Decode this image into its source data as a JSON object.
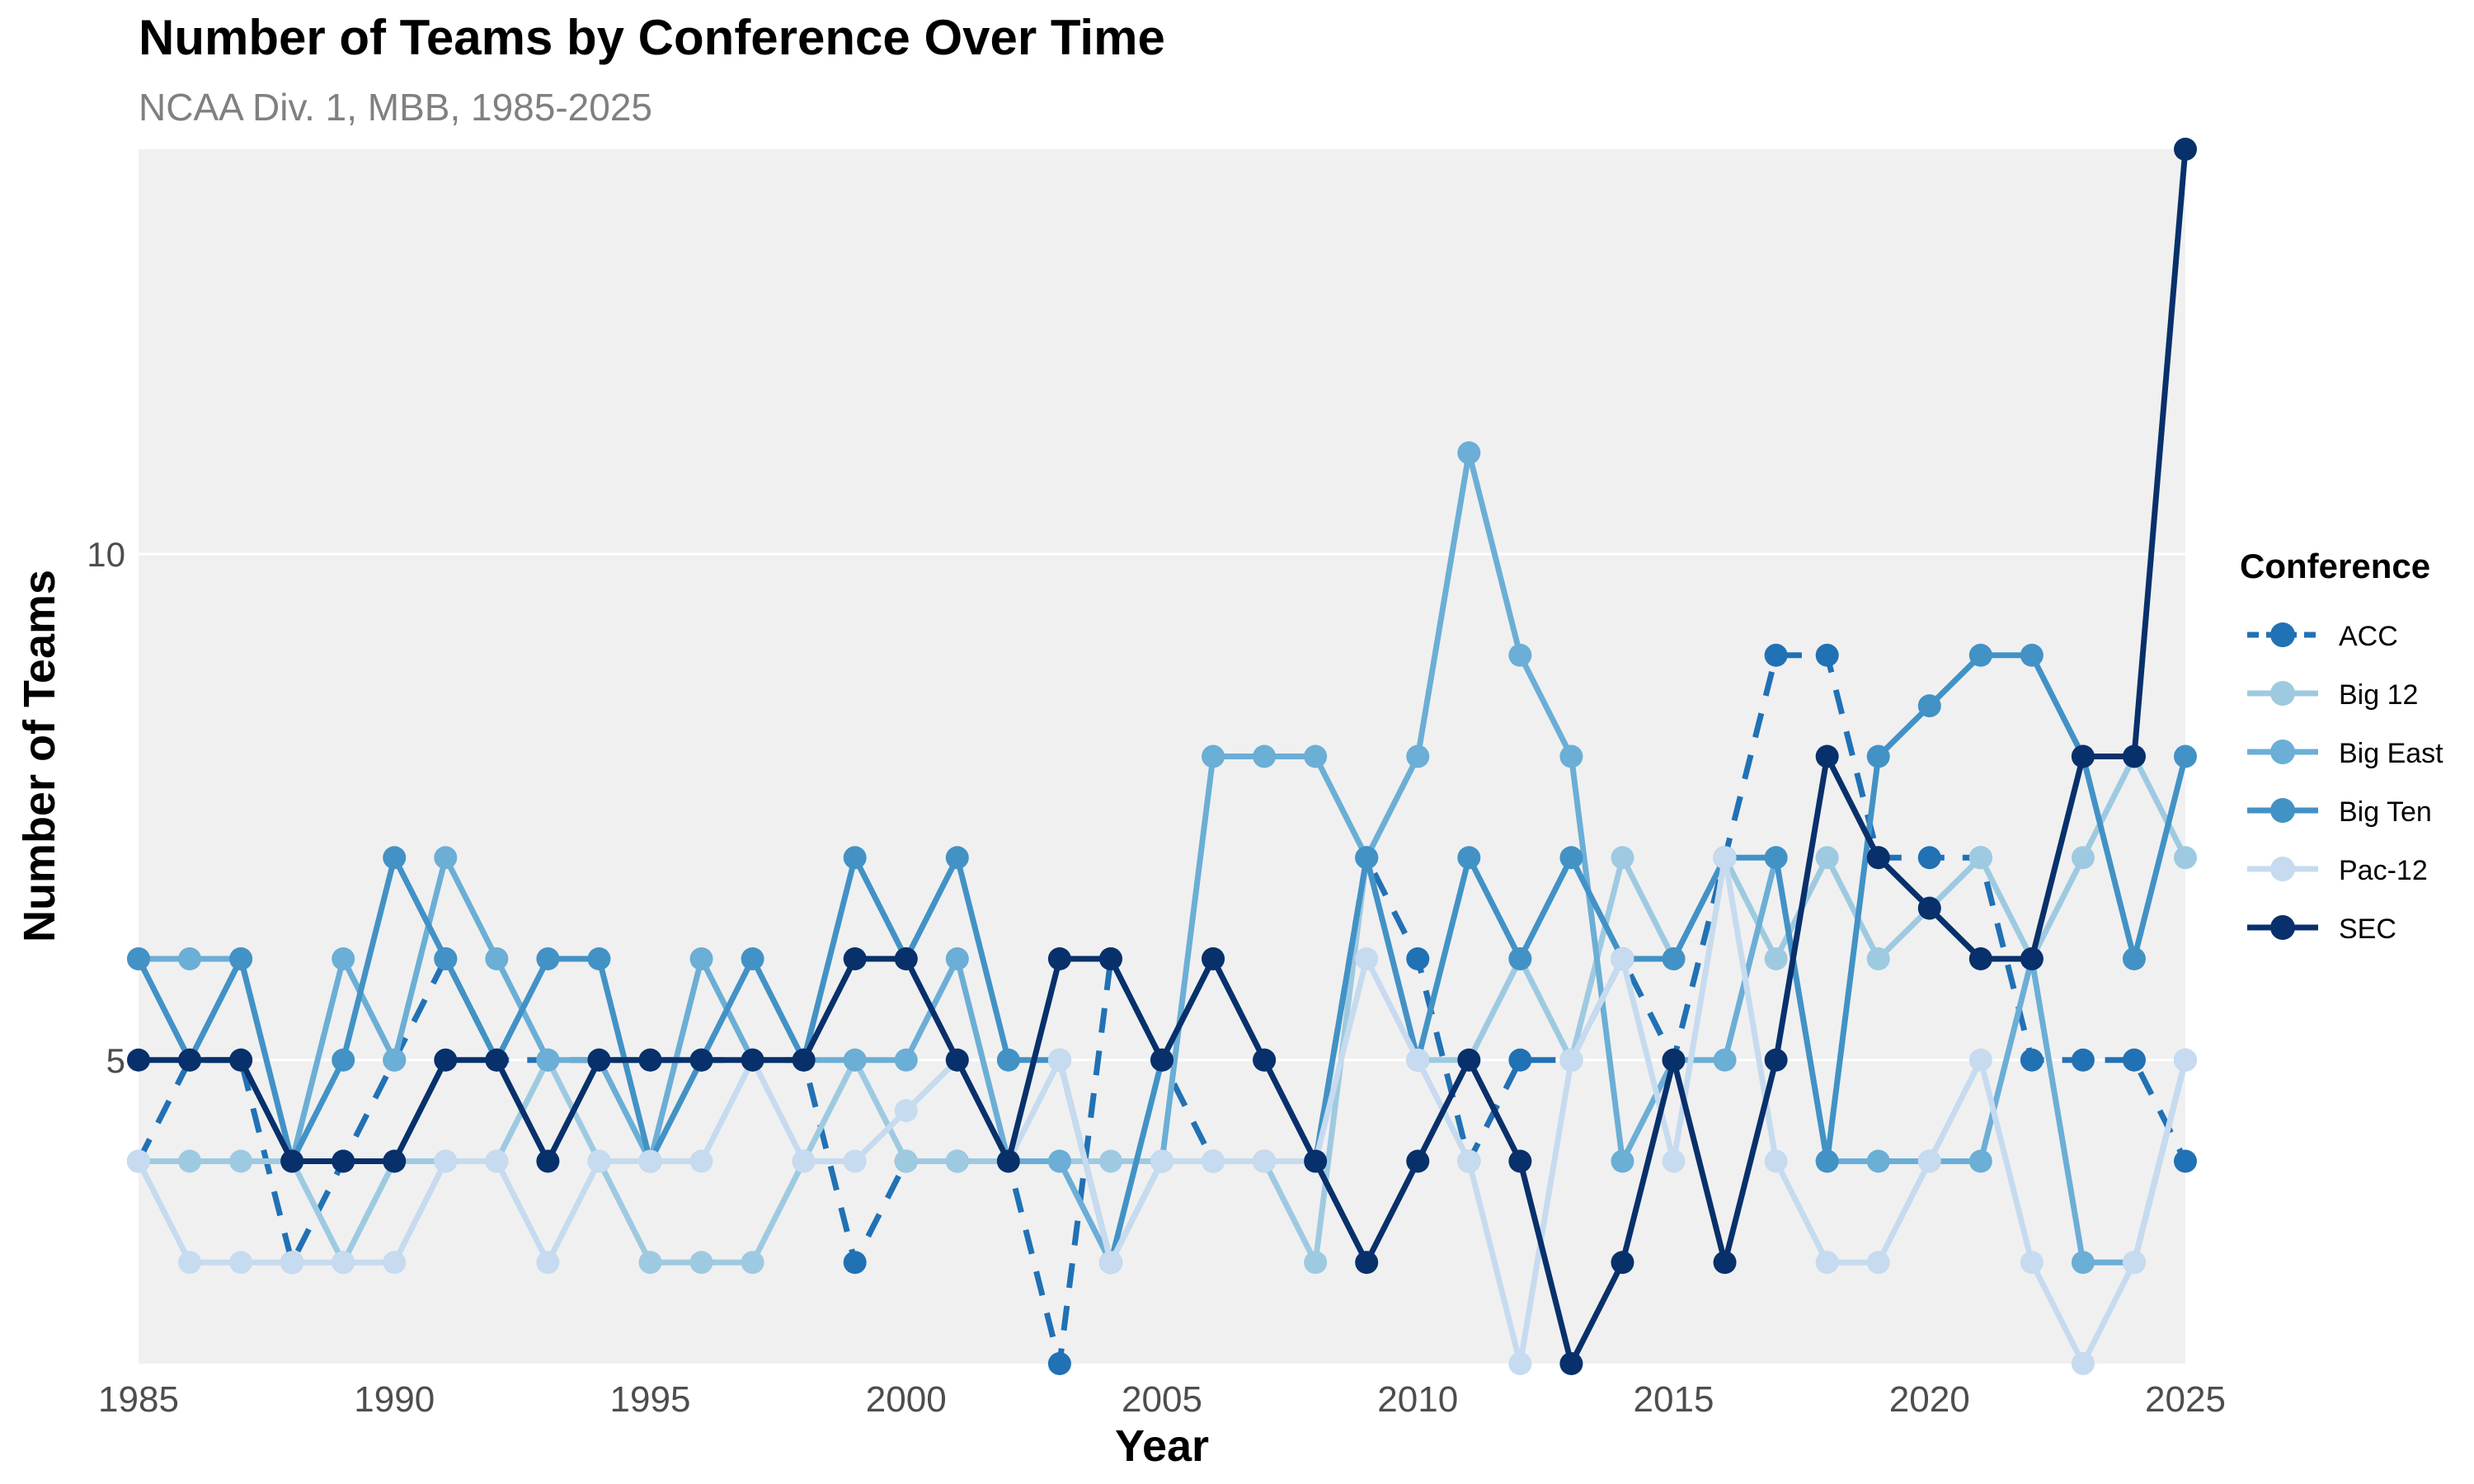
{
  "chart_data": {
    "type": "line",
    "title": "Number of Teams by Conference Over Time",
    "subtitle": "NCAA Div. 1, MBB, 1985-2025",
    "xlabel": "Year",
    "ylabel": "Number of Teams",
    "xlim": [
      1985,
      2025
    ],
    "ylim": [
      2,
      14
    ],
    "x_ticks": [
      1985,
      1990,
      1995,
      2000,
      2005,
      2010,
      2015,
      2020,
      2025
    ],
    "y_ticks": [
      5,
      10
    ],
    "grid": true,
    "legend": {
      "title": "Conference",
      "position": "right"
    },
    "x": [
      1985,
      1986,
      1987,
      1988,
      1989,
      1990,
      1991,
      1992,
      1993,
      1994,
      1995,
      1996,
      1997,
      1998,
      1999,
      2000,
      2001,
      2002,
      2003,
      2004,
      2005,
      2006,
      2007,
      2008,
      2009,
      2010,
      2011,
      2012,
      2013,
      2014,
      2015,
      2016,
      2017,
      2018,
      2019,
      2020,
      2021,
      2022,
      2023,
      2024,
      2025
    ],
    "series": [
      {
        "name": "ACC",
        "color": "#2171b5",
        "dashed": true,
        "values": [
          4,
          5,
          5,
          3,
          4,
          5,
          6,
          5,
          5,
          5,
          5,
          5,
          5,
          5,
          3,
          4,
          4,
          4,
          2,
          6,
          5,
          4,
          4,
          4,
          7,
          6,
          4,
          5,
          5,
          6,
          5,
          7,
          9,
          9,
          7,
          7,
          7,
          5,
          5,
          5,
          4
        ]
      },
      {
        "name": "Big 12",
        "color": "#9ecae1",
        "dashed": false,
        "values": [
          4,
          4,
          4,
          4,
          3,
          4,
          4,
          4,
          5,
          4,
          3,
          3,
          3,
          4,
          5,
          4,
          4,
          4,
          4,
          4,
          4,
          4,
          4,
          3,
          7,
          5,
          5,
          6,
          5,
          7,
          6,
          7,
          6,
          7,
          6,
          6.5,
          7,
          6,
          7,
          8,
          7
        ]
      },
      {
        "name": "Big East",
        "color": "#6baed6",
        "dashed": false,
        "values": [
          6,
          6,
          6,
          4,
          6,
          5,
          7,
          6,
          5,
          5,
          4,
          6,
          5,
          5,
          5,
          5,
          6,
          4,
          4,
          3,
          4,
          8,
          8,
          8,
          7,
          8,
          11,
          9,
          8,
          4,
          5,
          5,
          7,
          4,
          4,
          4,
          4,
          6,
          3,
          3,
          5
        ]
      },
      {
        "name": "Big Ten",
        "color": "#4292c6",
        "dashed": false,
        "values": [
          6,
          5,
          6,
          4,
          5,
          7,
          6,
          5,
          6,
          6,
          4,
          5,
          6,
          5,
          7,
          6,
          7,
          5,
          5,
          3,
          5,
          6,
          5,
          4,
          7,
          5,
          7,
          6,
          7,
          6,
          6,
          7,
          7,
          4,
          8,
          8.5,
          9,
          9,
          8,
          6,
          8
        ]
      },
      {
        "name": "Pac-12",
        "color": "#c6dbef",
        "dashed": false,
        "values": [
          4,
          3,
          3,
          3,
          3,
          3,
          4,
          4,
          3,
          4,
          4,
          4,
          5,
          4,
          4,
          4.5,
          5,
          4,
          5,
          3,
          4,
          4,
          4,
          4,
          6,
          5,
          4,
          2,
          5,
          6,
          4,
          7,
          4,
          3,
          3,
          4,
          5,
          3,
          2,
          3,
          5
        ]
      },
      {
        "name": "SEC",
        "color": "#08306b",
        "dashed": false,
        "values": [
          5,
          5,
          5,
          4,
          4,
          4,
          5,
          5,
          4,
          5,
          5,
          5,
          5,
          5,
          6,
          6,
          5,
          4,
          6,
          6,
          5,
          6,
          5,
          4,
          3,
          4,
          5,
          4,
          2,
          3,
          5,
          3,
          5,
          8,
          7,
          6.5,
          6,
          6,
          8,
          8,
          14
        ]
      }
    ]
  }
}
